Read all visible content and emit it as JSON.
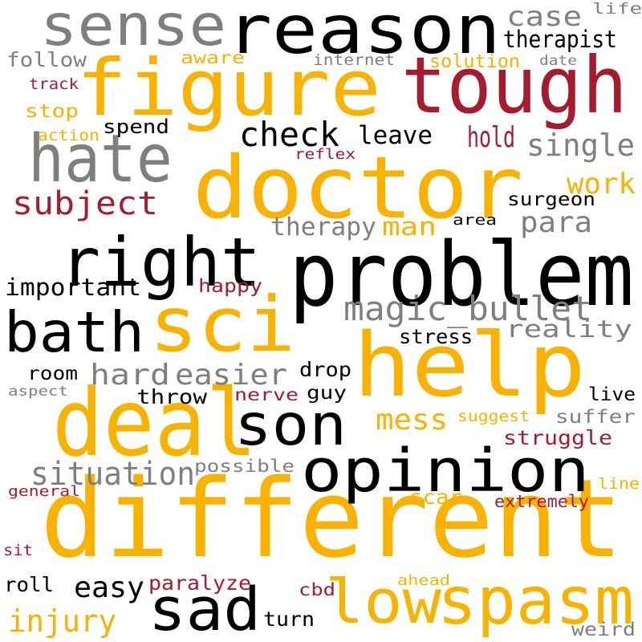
{
  "palette": {
    "gold": "#F9B200",
    "black": "#000000",
    "gray": "#7F7F7F",
    "crimson": "#A51C30"
  },
  "words": [
    {
      "text": "different",
      "color": "gold"
    },
    {
      "text": "doctor",
      "color": "gold"
    },
    {
      "text": "problem",
      "color": "black"
    },
    {
      "text": "help",
      "color": "gold"
    },
    {
      "text": "figure",
      "color": "gold"
    },
    {
      "text": "reason",
      "color": "black"
    },
    {
      "text": "tough",
      "color": "crimson"
    },
    {
      "text": "opinion",
      "color": "black"
    },
    {
      "text": "deal",
      "color": "gold"
    },
    {
      "text": "sci",
      "color": "gold"
    },
    {
      "text": "spasm",
      "color": "gold"
    },
    {
      "text": "right",
      "color": "black"
    },
    {
      "text": "hate",
      "color": "gray"
    },
    {
      "text": "sense",
      "color": "gray"
    },
    {
      "text": "low",
      "color": "gold"
    },
    {
      "text": "sad",
      "color": "black"
    },
    {
      "text": "bath",
      "color": "black"
    },
    {
      "text": "son",
      "color": "black"
    },
    {
      "text": "magic_bullet",
      "color": "gray"
    },
    {
      "text": "check",
      "color": "black"
    },
    {
      "text": "subject",
      "color": "crimson"
    },
    {
      "text": "situation",
      "color": "gray"
    },
    {
      "text": "easier",
      "color": "gray"
    },
    {
      "text": "hard",
      "color": "gray"
    },
    {
      "text": "single",
      "color": "gray"
    },
    {
      "text": "injury",
      "color": "gold"
    },
    {
      "text": "mess",
      "color": "gold"
    },
    {
      "text": "para",
      "color": "gray"
    },
    {
      "text": "reality",
      "color": "gray"
    },
    {
      "text": "therapy",
      "color": "gray"
    },
    {
      "text": "hold",
      "color": "crimson"
    },
    {
      "text": "leave",
      "color": "black"
    },
    {
      "text": "therapist",
      "color": "black"
    },
    {
      "text": "case",
      "color": "gray"
    },
    {
      "text": "work",
      "color": "gold"
    },
    {
      "text": "easy",
      "color": "black"
    },
    {
      "text": "man",
      "color": "gold"
    },
    {
      "text": "important",
      "color": "black"
    },
    {
      "text": "struggle",
      "color": "crimson"
    },
    {
      "text": "suffer",
      "color": "gray"
    },
    {
      "text": "paralyze",
      "color": "crimson"
    },
    {
      "text": "spend",
      "color": "black"
    },
    {
      "text": "follow",
      "color": "gray"
    },
    {
      "text": "throw",
      "color": "black"
    },
    {
      "text": "surgeon",
      "color": "black"
    },
    {
      "text": "solution",
      "color": "gold"
    },
    {
      "text": "stress",
      "color": "black"
    },
    {
      "text": "scar",
      "color": "gold"
    },
    {
      "text": "roll",
      "color": "black"
    },
    {
      "text": "room",
      "color": "black"
    },
    {
      "text": "turn",
      "color": "black"
    },
    {
      "text": "live",
      "color": "black"
    },
    {
      "text": "drop",
      "color": "black"
    },
    {
      "text": "guy",
      "color": "black"
    },
    {
      "text": "nerve",
      "color": "crimson"
    },
    {
      "text": "happy",
      "color": "crimson"
    },
    {
      "text": "cbd",
      "color": "crimson"
    },
    {
      "text": "stop",
      "color": "gold"
    },
    {
      "text": "aware",
      "color": "gold"
    },
    {
      "text": "possible",
      "color": "gray"
    },
    {
      "text": "weird",
      "color": "gray"
    },
    {
      "text": "extremely",
      "color": "crimson"
    },
    {
      "text": "suggest",
      "color": "gold"
    },
    {
      "text": "life",
      "color": "gray"
    },
    {
      "text": "internet",
      "color": "gray"
    },
    {
      "text": "track",
      "color": "crimson"
    },
    {
      "text": "action",
      "color": "gold"
    },
    {
      "text": "reflex",
      "color": "crimson"
    },
    {
      "text": "area",
      "color": "black"
    },
    {
      "text": "aspect",
      "color": "gray"
    },
    {
      "text": "general",
      "color": "crimson"
    },
    {
      "text": "sit",
      "color": "crimson"
    },
    {
      "text": "line",
      "color": "gold"
    },
    {
      "text": "ahead",
      "color": "gold"
    },
    {
      "text": "date",
      "color": "gray"
    }
  ]
}
